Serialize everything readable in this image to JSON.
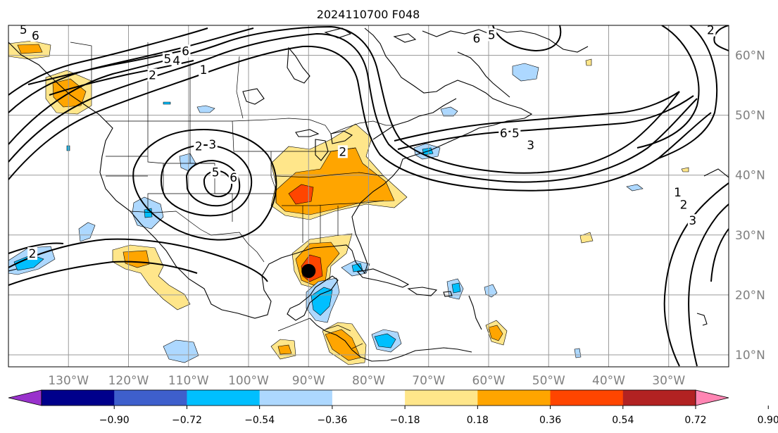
{
  "title": "2024110700 F048",
  "map": {
    "lon_min": -140,
    "lon_max": -20,
    "lat_min": 8,
    "lat_max": 65,
    "lon_ticks": [
      {
        "value": -130,
        "label": "130°W"
      },
      {
        "value": -120,
        "label": "120°W"
      },
      {
        "value": -110,
        "label": "110°W"
      },
      {
        "value": -100,
        "label": "100°W"
      },
      {
        "value": -90,
        "label": "90°W"
      },
      {
        "value": -80,
        "label": "80°W"
      },
      {
        "value": -70,
        "label": "70°W"
      },
      {
        "value": -60,
        "label": "60°W"
      },
      {
        "value": -50,
        "label": "50°W"
      },
      {
        "value": -40,
        "label": "40°W"
      },
      {
        "value": -30,
        "label": "30°W"
      }
    ],
    "lat_ticks": [
      {
        "value": 60,
        "label": "60°N"
      },
      {
        "value": 50,
        "label": "50°N"
      },
      {
        "value": 40,
        "label": "40°N"
      },
      {
        "value": 30,
        "label": "30°N"
      },
      {
        "value": 20,
        "label": "20°N"
      },
      {
        "value": 10,
        "label": "10°N"
      }
    ],
    "storm_center": {
      "lon": -90,
      "lat": 24
    },
    "contour_labels": [
      {
        "text": "5",
        "lon": -137.5,
        "lat": 64.2
      },
      {
        "text": "6",
        "lon": -135.5,
        "lat": 63.2
      },
      {
        "text": "6",
        "lon": -110.5,
        "lat": 60.6
      },
      {
        "text": "5",
        "lon": -113.5,
        "lat": 59.3
      },
      {
        "text": "4",
        "lon": -112.0,
        "lat": 59.0
      },
      {
        "text": "2",
        "lon": -116.0,
        "lat": 56.6
      },
      {
        "text": "1",
        "lon": -107.5,
        "lat": 57.5
      },
      {
        "text": "2",
        "lon": -108.3,
        "lat": 44.7
      },
      {
        "text": "3",
        "lon": -106.0,
        "lat": 45.0
      },
      {
        "text": "5",
        "lon": -105.5,
        "lat": 40.4
      },
      {
        "text": "6",
        "lon": -102.5,
        "lat": 39.5
      },
      {
        "text": "2",
        "lon": -84.3,
        "lat": 43.8
      },
      {
        "text": "6",
        "lon": -57.5,
        "lat": 46.9
      },
      {
        "text": "5",
        "lon": -55.5,
        "lat": 46.9
      },
      {
        "text": "3",
        "lon": -53.0,
        "lat": 44.9
      },
      {
        "text": "6",
        "lon": -62.0,
        "lat": 62.7
      },
      {
        "text": "5",
        "lon": -59.5,
        "lat": 63.3
      },
      {
        "text": "2",
        "lon": -23.0,
        "lat": 64.1
      },
      {
        "text": "1",
        "lon": -28.5,
        "lat": 37.0
      },
      {
        "text": "2",
        "lon": -27.5,
        "lat": 35.0
      },
      {
        "text": "3",
        "lon": -26.0,
        "lat": 32.3
      },
      {
        "text": "2",
        "lon": -136.0,
        "lat": 26.8
      }
    ]
  },
  "colorbar": {
    "colors": [
      "#9932cc",
      "#00008b",
      "#3e5fcc",
      "#00bfff",
      "#add8ff",
      "#ffffff",
      "#ffe68a",
      "#ffa500",
      "#ff4500",
      "#b22222",
      "#ff85b3"
    ],
    "ticks": [
      "−0.90",
      "−0.72",
      "−0.54",
      "−0.36",
      "−0.18",
      "0.18",
      "0.36",
      "0.54",
      "0.72",
      "0.90"
    ]
  }
}
